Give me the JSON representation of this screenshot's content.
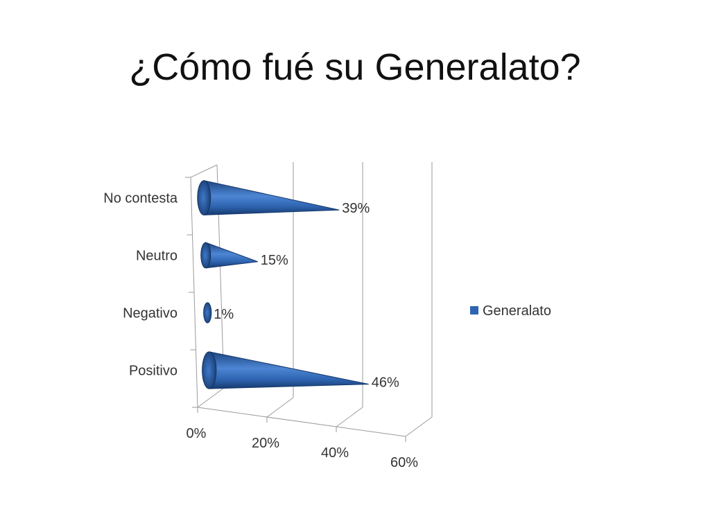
{
  "slide": {
    "title": "¿Cómo fué su Generalato?"
  },
  "chart_data": {
    "type": "bar",
    "categories": [
      "Positivo",
      "Negativo",
      "Neutro",
      "No contesta"
    ],
    "series": [
      {
        "name": "Generalato",
        "values": [
          46,
          1,
          15,
          39
        ],
        "labels": [
          "46%",
          "1%",
          "15%",
          "39%"
        ]
      }
    ],
    "x_ticks": [
      "0%",
      "20%",
      "40%",
      "60%"
    ],
    "xlim": [
      0,
      60
    ],
    "unit": "%",
    "orientation": "horizontal",
    "bar_shape": "cone",
    "grid": true,
    "legend_position": "right",
    "colors": {
      "series": "#2e64b0",
      "series_dark": "#1a3f78",
      "grid": "#9a9a9a"
    }
  }
}
